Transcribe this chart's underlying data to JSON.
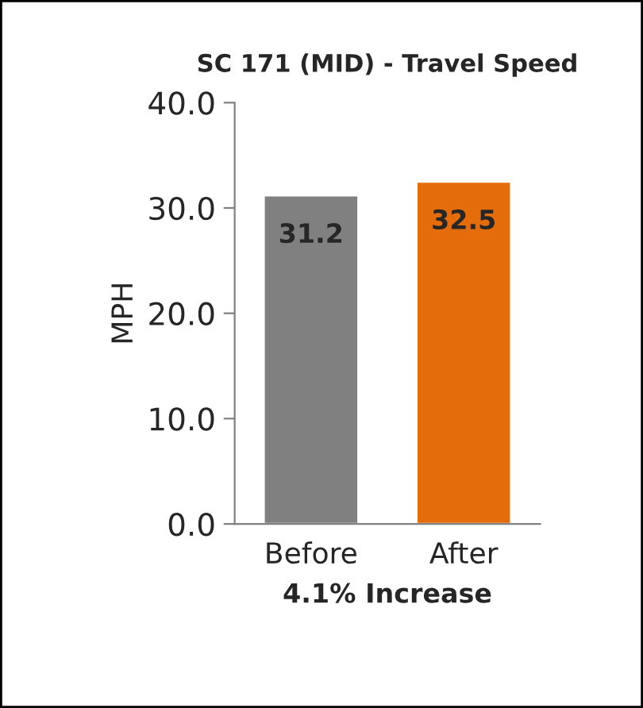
{
  "chart_data": {
    "type": "bar",
    "title": "SC 171 (MID) - Travel Speed",
    "ylabel": "MPH",
    "xlabel": "4.1% Increase",
    "categories": [
      "Before",
      "After"
    ],
    "values": [
      31.2,
      32.5
    ],
    "colors": [
      "#808080",
      "#e46c0a"
    ],
    "ylim": [
      0,
      40
    ],
    "yticks": [
      {
        "value": 0,
        "label": "0.0"
      },
      {
        "value": 10,
        "label": "10.0"
      },
      {
        "value": 20,
        "label": "20.0"
      },
      {
        "value": 30,
        "label": "30.0"
      },
      {
        "value": 40,
        "label": "40.0"
      }
    ],
    "data_labels": true,
    "grid": false,
    "legend": false
  }
}
